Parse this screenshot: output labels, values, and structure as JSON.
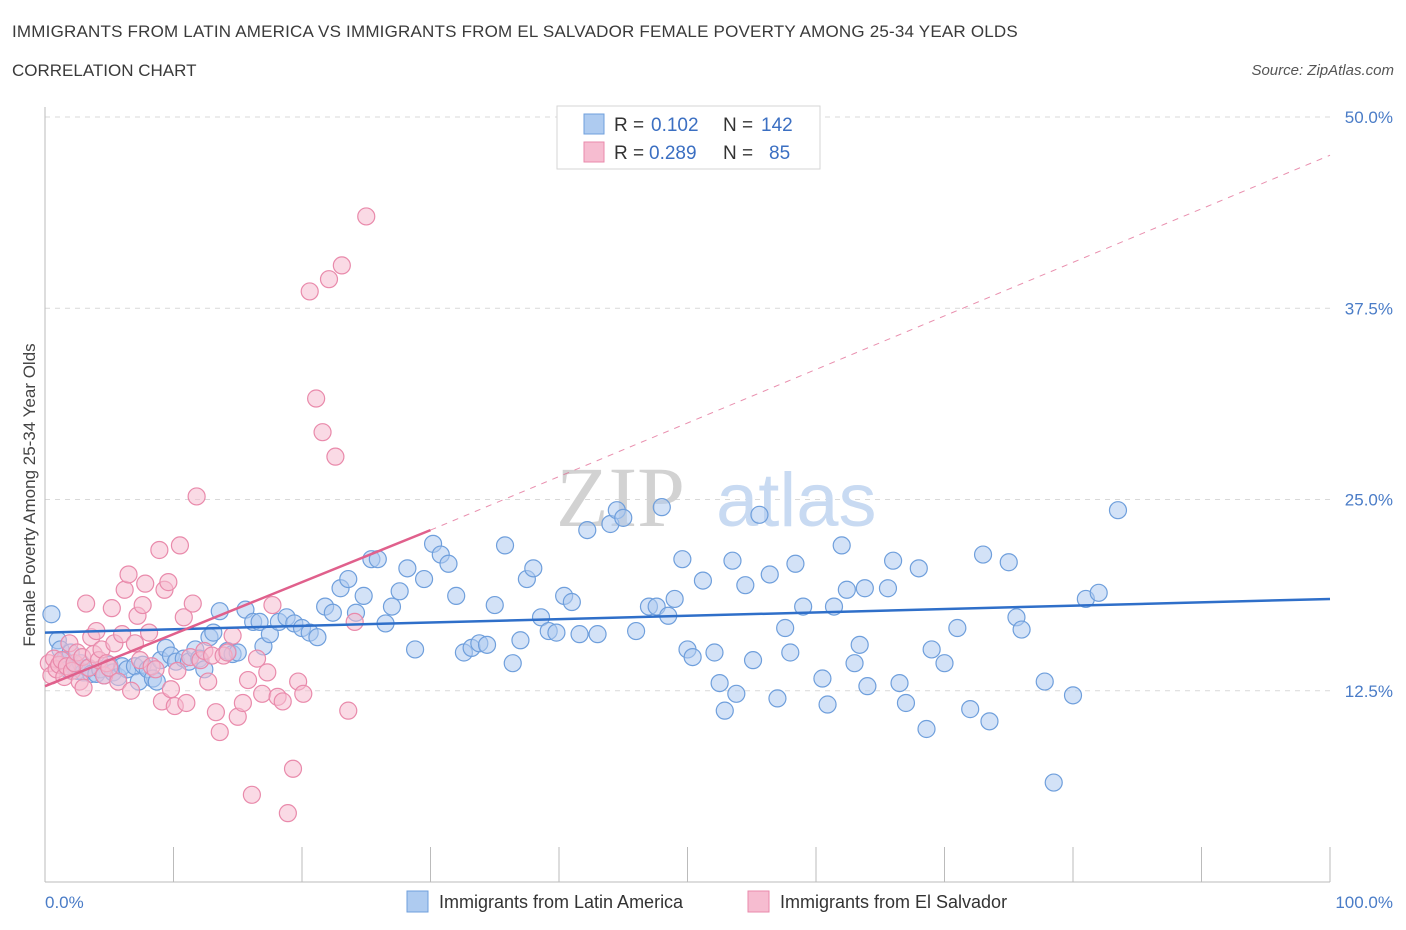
{
  "header": {
    "title": "IMMIGRANTS FROM LATIN AMERICA VS IMMIGRANTS FROM EL SALVADOR FEMALE POVERTY AMONG 25-34 YEAR OLDS",
    "subtitle": "CORRELATION CHART",
    "source": "Source: ZipAtlas.com"
  },
  "watermark": {
    "zip": "ZIP",
    "atlas": "atlas"
  },
  "legend": {
    "r_label": "R =",
    "n_label": "N =",
    "rows": [
      {
        "r": "0.102",
        "n": "142"
      },
      {
        "r": "0.289",
        "n": "85"
      }
    ]
  },
  "colors": {
    "blue_fill": "#aecbf0",
    "blue_stroke": "#6f9fdc",
    "blue_line": "#2f6fc9",
    "pink_fill": "#f6bcd0",
    "pink_stroke": "#e98aab",
    "pink_line": "#e0608c",
    "grid": "#d9d9d9",
    "tick_text": "#4a7cc7"
  },
  "chart_data": {
    "type": "scatter",
    "ylabel": "Female Poverty Among 25-34 Year Olds",
    "xlim": [
      0,
      100
    ],
    "ylim": [
      0,
      50
    ],
    "x_tick_labels": [
      "0.0%",
      "100.0%"
    ],
    "y_ticks": [
      12.5,
      25.0,
      37.5,
      50.0
    ],
    "y_tick_labels": [
      "12.5%",
      "25.0%",
      "37.5%",
      "50.0%"
    ],
    "grid": "horizontal dashed",
    "legend_position": "bottom",
    "series": [
      {
        "name": "Immigrants from Latin America",
        "trend": {
          "x": [
            0,
            100
          ],
          "y": [
            16.3,
            18.5
          ],
          "style": "solid"
        },
        "points": [
          [
            0.5,
            17.5
          ],
          [
            1,
            15.8
          ],
          [
            1.2,
            15.2
          ],
          [
            1.5,
            14.5
          ],
          [
            1.8,
            13.9
          ],
          [
            2,
            15
          ],
          [
            2.3,
            14
          ],
          [
            2.5,
            13.8
          ],
          [
            2.8,
            14.3
          ],
          [
            3,
            13.7
          ],
          [
            3.3,
            14
          ],
          [
            3.6,
            13.6
          ],
          [
            4,
            13.6
          ],
          [
            4.3,
            13.9
          ],
          [
            4.6,
            13.5
          ],
          [
            5,
            14.2
          ],
          [
            5.3,
            13.7
          ],
          [
            5.7,
            13.4
          ],
          [
            6,
            14.1
          ],
          [
            6.4,
            13.9
          ],
          [
            7,
            14.1
          ],
          [
            7.3,
            13.1
          ],
          [
            7.6,
            14.2
          ],
          [
            8,
            13.9
          ],
          [
            8.4,
            13.3
          ],
          [
            8.7,
            13.1
          ],
          [
            9,
            14.5
          ],
          [
            9.4,
            15.3
          ],
          [
            9.8,
            14.8
          ],
          [
            10.2,
            14.4
          ],
          [
            10.8,
            14.6
          ],
          [
            11.2,
            14.4
          ],
          [
            11.7,
            15.2
          ],
          [
            12,
            14.6
          ],
          [
            12.4,
            13.9
          ],
          [
            12.8,
            16
          ],
          [
            13.1,
            16.3
          ],
          [
            13.6,
            17.7
          ],
          [
            14.2,
            15.1
          ],
          [
            14.6,
            14.9
          ],
          [
            15,
            15
          ],
          [
            15.6,
            17.8
          ],
          [
            16.2,
            17
          ],
          [
            16.7,
            17
          ],
          [
            17,
            15.4
          ],
          [
            17.5,
            16.2
          ],
          [
            18.2,
            17
          ],
          [
            18.8,
            17.3
          ],
          [
            19.4,
            16.9
          ],
          [
            20,
            16.6
          ],
          [
            20.6,
            16.3
          ],
          [
            21.2,
            16
          ],
          [
            21.8,
            18
          ],
          [
            22.4,
            17.6
          ],
          [
            23,
            19.2
          ],
          [
            23.6,
            19.8
          ],
          [
            24.2,
            17.6
          ],
          [
            24.8,
            18.7
          ],
          [
            25.4,
            21.1
          ],
          [
            25.9,
            21.1
          ],
          [
            26.5,
            16.9
          ],
          [
            27,
            18
          ],
          [
            27.6,
            19
          ],
          [
            28.2,
            20.5
          ],
          [
            28.8,
            15.2
          ],
          [
            29.5,
            19.8
          ],
          [
            30.2,
            22.1
          ],
          [
            30.8,
            21.4
          ],
          [
            31.4,
            20.8
          ],
          [
            32,
            18.7
          ],
          [
            32.6,
            15
          ],
          [
            33.2,
            15.3
          ],
          [
            33.8,
            15.6
          ],
          [
            34.4,
            15.5
          ],
          [
            35,
            18.1
          ],
          [
            35.8,
            22
          ],
          [
            36.4,
            14.3
          ],
          [
            37,
            15.8
          ],
          [
            37.5,
            19.8
          ],
          [
            38,
            20.5
          ],
          [
            38.6,
            17.3
          ],
          [
            39.2,
            16.4
          ],
          [
            39.8,
            16.3
          ],
          [
            40.4,
            18.7
          ],
          [
            41,
            18.3
          ],
          [
            41.6,
            16.2
          ],
          [
            42.2,
            23
          ],
          [
            43,
            16.2
          ],
          [
            44,
            23.4
          ],
          [
            44.5,
            24.3
          ],
          [
            45,
            23.8
          ],
          [
            46,
            16.4
          ],
          [
            47,
            18
          ],
          [
            47.6,
            18
          ],
          [
            48,
            24.5
          ],
          [
            48.5,
            17.4
          ],
          [
            49,
            18.5
          ],
          [
            49.6,
            21.1
          ],
          [
            50,
            15.2
          ],
          [
            50.4,
            14.7
          ],
          [
            51.2,
            19.7
          ],
          [
            52.1,
            15
          ],
          [
            52.5,
            13
          ],
          [
            52.9,
            11.2
          ],
          [
            53.5,
            21
          ],
          [
            53.8,
            12.3
          ],
          [
            54.5,
            19.4
          ],
          [
            55.1,
            14.5
          ],
          [
            55.6,
            24
          ],
          [
            56.4,
            20.1
          ],
          [
            57,
            12
          ],
          [
            57.6,
            16.6
          ],
          [
            58,
            15
          ],
          [
            58.4,
            20.8
          ],
          [
            59,
            18
          ],
          [
            60.5,
            13.3
          ],
          [
            60.9,
            11.6
          ],
          [
            61.4,
            18
          ],
          [
            62,
            22
          ],
          [
            62.4,
            19.1
          ],
          [
            63,
            14.3
          ],
          [
            63.4,
            15.5
          ],
          [
            63.8,
            19.2
          ],
          [
            64,
            12.8
          ],
          [
            65.6,
            19.2
          ],
          [
            66,
            21
          ],
          [
            66.5,
            13
          ],
          [
            67,
            11.7
          ],
          [
            68,
            20.5
          ],
          [
            68.6,
            10
          ],
          [
            69,
            15.2
          ],
          [
            70,
            14.3
          ],
          [
            71,
            16.6
          ],
          [
            72,
            11.3
          ],
          [
            73,
            21.4
          ],
          [
            73.5,
            10.5
          ],
          [
            75,
            20.9
          ],
          [
            75.6,
            17.3
          ],
          [
            76,
            16.5
          ],
          [
            77.8,
            13.1
          ],
          [
            78.5,
            6.5
          ],
          [
            80,
            12.2
          ],
          [
            81,
            18.5
          ],
          [
            82,
            18.9
          ],
          [
            83.5,
            24.3
          ]
        ]
      },
      {
        "name": "Immigrants from El Salvador",
        "trend": {
          "x": [
            0,
            30
          ],
          "y": [
            12.8,
            23.0
          ],
          "style": "solid",
          "extension": {
            "x": [
              30,
              100
            ],
            "y": [
              23.0,
              47.5
            ],
            "style": "dashed"
          }
        },
        "points": [
          [
            0.3,
            14.3
          ],
          [
            0.5,
            13.5
          ],
          [
            0.7,
            14.6
          ],
          [
            0.9,
            13.9
          ],
          [
            1.1,
            14.2
          ],
          [
            1.3,
            14.5
          ],
          [
            1.5,
            13.4
          ],
          [
            1.7,
            14.1
          ],
          [
            1.9,
            15.6
          ],
          [
            2.1,
            13.8
          ],
          [
            2.3,
            14.3
          ],
          [
            2.5,
            15
          ],
          [
            2.7,
            13.1
          ],
          [
            2.9,
            14.7
          ],
          [
            3,
            12.7
          ],
          [
            3.2,
            18.2
          ],
          [
            3.4,
            14
          ],
          [
            3.6,
            16
          ],
          [
            3.8,
            14.9
          ],
          [
            4,
            16.4
          ],
          [
            4.2,
            14.5
          ],
          [
            4.4,
            15.2
          ],
          [
            4.6,
            13.5
          ],
          [
            4.8,
            14.3
          ],
          [
            5,
            14
          ],
          [
            5.2,
            17.9
          ],
          [
            5.4,
            15.6
          ],
          [
            5.7,
            13.1
          ],
          [
            6,
            16.2
          ],
          [
            6.2,
            19.1
          ],
          [
            6.5,
            20.1
          ],
          [
            6.7,
            12.5
          ],
          [
            7,
            15.6
          ],
          [
            7.2,
            17.4
          ],
          [
            7.4,
            14.5
          ],
          [
            7.6,
            18.1
          ],
          [
            7.8,
            19.5
          ],
          [
            8.1,
            16.3
          ],
          [
            8.3,
            14.1
          ],
          [
            8.6,
            13.9
          ],
          [
            8.9,
            21.7
          ],
          [
            9.1,
            11.8
          ],
          [
            9.3,
            19.1
          ],
          [
            9.6,
            19.6
          ],
          [
            9.8,
            12.6
          ],
          [
            10.1,
            11.5
          ],
          [
            10.3,
            13.8
          ],
          [
            10.5,
            22
          ],
          [
            10.8,
            17.3
          ],
          [
            11,
            11.7
          ],
          [
            11.3,
            14.7
          ],
          [
            11.5,
            18.2
          ],
          [
            11.8,
            25.2
          ],
          [
            12.1,
            14.5
          ],
          [
            12.4,
            15.1
          ],
          [
            12.7,
            13.1
          ],
          [
            13,
            14.8
          ],
          [
            13.3,
            11.1
          ],
          [
            13.6,
            9.8
          ],
          [
            13.9,
            14.8
          ],
          [
            14.2,
            15
          ],
          [
            14.6,
            16.1
          ],
          [
            15,
            10.8
          ],
          [
            15.4,
            11.7
          ],
          [
            15.8,
            13.2
          ],
          [
            16.1,
            5.7
          ],
          [
            16.5,
            14.6
          ],
          [
            16.9,
            12.3
          ],
          [
            17.3,
            13.7
          ],
          [
            17.7,
            18.1
          ],
          [
            18.1,
            12.1
          ],
          [
            18.5,
            11.8
          ],
          [
            18.9,
            4.5
          ],
          [
            19.3,
            7.4
          ],
          [
            19.7,
            13.1
          ],
          [
            20.1,
            12.3
          ],
          [
            20.6,
            38.6
          ],
          [
            21.1,
            31.6
          ],
          [
            21.6,
            29.4
          ],
          [
            22.1,
            39.4
          ],
          [
            22.6,
            27.8
          ],
          [
            23.1,
            40.3
          ],
          [
            23.6,
            11.2
          ],
          [
            24.1,
            17
          ],
          [
            25,
            43.5
          ]
        ]
      }
    ]
  },
  "bottom_legend": [
    {
      "label": "Immigrants from Latin America"
    },
    {
      "label": "Immigrants from El Salvador"
    }
  ]
}
